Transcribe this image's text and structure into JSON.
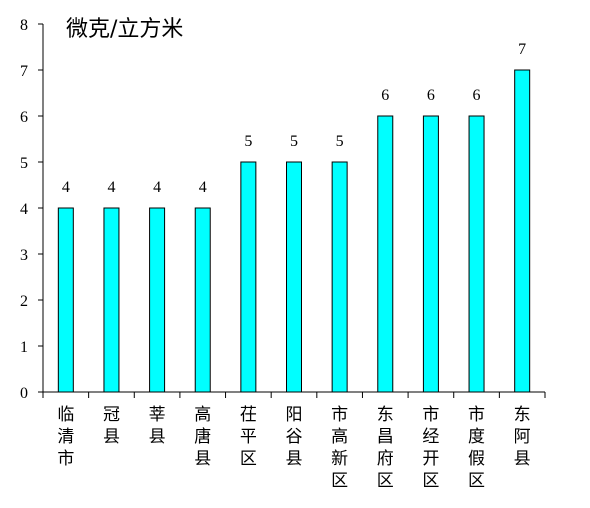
{
  "chart_data": {
    "type": "bar",
    "unit_label": "微克/立方米",
    "categories": [
      "临清市",
      "冠县",
      "莘县",
      "高唐县",
      "茌平区",
      "阳谷县",
      "市高新区",
      "东昌府区",
      "市经开区",
      "市度假区",
      "东阿县"
    ],
    "values": [
      4,
      4,
      4,
      4,
      5,
      5,
      5,
      6,
      6,
      6,
      7
    ],
    "ylim": [
      0,
      8
    ],
    "yticks": [
      0,
      1,
      2,
      3,
      4,
      5,
      6,
      7,
      8
    ],
    "grid": false,
    "legend": "none",
    "bar_color": "#00FFFF",
    "bar_stroke": "#000000"
  }
}
